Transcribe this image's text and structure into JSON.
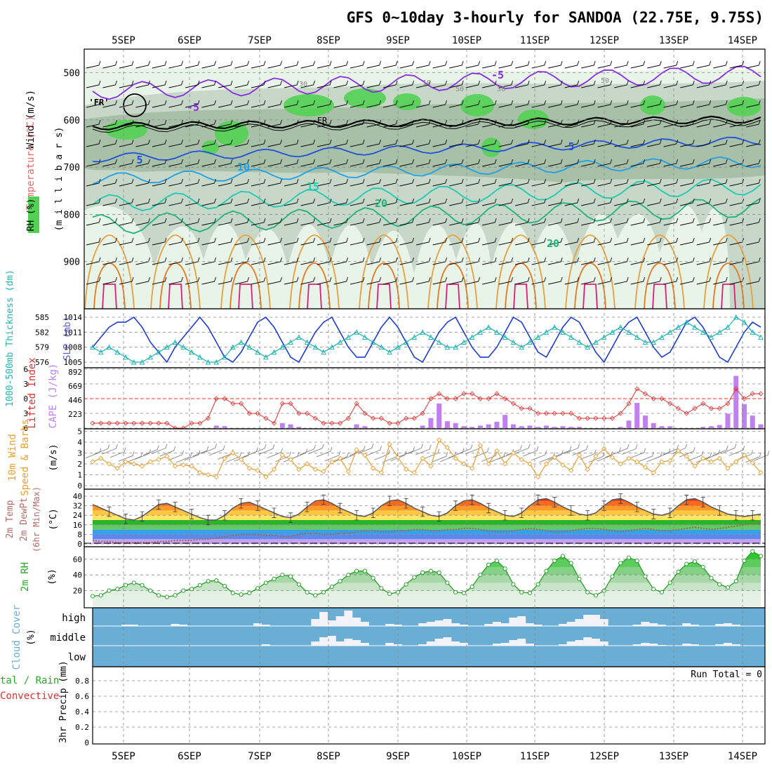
{
  "title": "GFS 0~10day 3-hourly for SANDOA (22.75E, 9.75S)",
  "date_labels": [
    "5SEP",
    "6SEP",
    "7SEP",
    "8SEP",
    "9SEP",
    "10SEP",
    "11SEP",
    "12SEP",
    "13SEP",
    "14SEP"
  ],
  "panels": {
    "upper_air": {
      "ylabel_units": "(m i l l i b a r s)",
      "ylabel_wind": "Wind (m/s)",
      "ylabel_temp": "Temperature (°C)",
      "ylabel_rh": "RH (%)",
      "y_ticks": [
        500,
        600,
        700,
        800,
        900
      ],
      "ylim": [
        1000,
        450
      ],
      "freezing_label": "FR",
      "freezing_label_top": "'FR'",
      "isotherm_labels": [
        "-5",
        "5",
        "10",
        "15",
        "20",
        "20"
      ],
      "rh_labels": [
        "30",
        "10",
        "50",
        "30",
        "50"
      ],
      "colors": {
        "rh70": "#c8d8c8",
        "rh80": "#a8c0a8",
        "rh90": "#52d152",
        "rh50": "#e8f4e8",
        "minus5": "#8a2be2",
        "iso5": "#1e50dc",
        "iso10": "#1ea0e6",
        "iso15": "#1ec8b4",
        "iso20": "#1eb478",
        "warm": "#e6a040",
        "hot": "#e67820",
        "veryhot": "#dc1e78"
      }
    },
    "thickness_slp": {
      "ylabel_thickness": "1000-500mb Thickness (dm)",
      "ylabel_slp": "SLP (mb)",
      "thickness_ticks": [
        "585",
        "582",
        "579",
        "576"
      ],
      "slp_ticks": [
        "1014",
        "1011",
        "1008",
        "1005"
      ],
      "colors": {
        "slp": "#1e3cd2",
        "thickness": "#20b4b4"
      }
    },
    "cape_li": {
      "ylabel_li": "Lifted Index",
      "ylabel_cape": "CAPE (J/kg)",
      "li_ticks": [
        "-6",
        "-3",
        "0",
        "3",
        "6"
      ],
      "cape_ticks": [
        "892",
        "669",
        "446",
        "223"
      ],
      "colors": {
        "li": "#e03030",
        "cape": "#c080f0"
      }
    },
    "wind10m": {
      "ylabel_a": "10m Wind",
      "ylabel_b": "Speed & Barbs",
      "ylabel_units": "(m/s)",
      "y_ticks": [
        "5",
        "4",
        "3",
        "2",
        "1",
        "0"
      ],
      "colors": {
        "speed": "#e8a030"
      }
    },
    "temp2m": {
      "ylabel_a": "2m Temp",
      "ylabel_b": "2m DewPt",
      "ylabel_c": "(6hr Min/Max)",
      "ylabel_units": "(°C)",
      "y_ticks": [
        "40",
        "32",
        "24",
        "16",
        "8",
        "0"
      ]
    },
    "rh2m": {
      "ylabel": "2m RH",
      "ylabel_units": "(%)",
      "y_ticks": [
        "60",
        "40",
        "20"
      ],
      "colors": {
        "line": "#1a9a1a",
        "fill": "#52d152"
      }
    },
    "cloud": {
      "ylabel": "Cloud Cover",
      "ylabel_units": "(%)",
      "levels": [
        "high",
        "middle",
        "low"
      ],
      "colors": {
        "bg": "#6aaed6",
        "cloud": "#f2f2f8"
      }
    },
    "precip": {
      "ylabel_a": "tal / Rain",
      "ylabel_b": "Convective",
      "ylabel_c": "3hr Precip (mm)",
      "y_ticks": [
        "0.8",
        "0.6",
        "0.4",
        "0.2",
        "0"
      ],
      "run_total": "Run Total = 0"
    }
  },
  "chart_data": [
    {
      "type": "line",
      "panel": "thickness_slp",
      "x_unit": "3-hourly steps from 4SEP 12Z",
      "series": [
        {
          "name": "SLP (mb)",
          "values": [
            1008,
            1010,
            1012,
            1013,
            1013,
            1014,
            1012,
            1009,
            1007,
            1005,
            1008,
            1010,
            1012,
            1014,
            1012,
            1009,
            1006,
            1005,
            1007,
            1010,
            1013,
            1014,
            1012,
            1009,
            1006,
            1005,
            1008,
            1011,
            1013,
            1014,
            1011,
            1008,
            1006,
            1006,
            1009,
            1012,
            1014,
            1012,
            1009,
            1006,
            1005,
            1008,
            1011,
            1013,
            1014,
            1011,
            1008,
            1006,
            1006,
            1008,
            1011,
            1014,
            1013,
            1010,
            1007,
            1006,
            1009,
            1012,
            1014,
            1013,
            1010,
            1007,
            1005,
            1008,
            1011,
            1013,
            1014,
            1011,
            1008,
            1006,
            1007,
            1010,
            1013,
            1014,
            1012,
            1009,
            1006,
            1005,
            1008,
            1011,
            1013,
            1012
          ]
        },
        {
          "name": "1000-500mb Thickness (dm)",
          "values": [
            579,
            578,
            579,
            578,
            577,
            576,
            576,
            577,
            578,
            579,
            580,
            579,
            578,
            577,
            576,
            576,
            577,
            579,
            580,
            579,
            578,
            577,
            578,
            579,
            580,
            581,
            580,
            579,
            578,
            579,
            580,
            581,
            582,
            581,
            580,
            579,
            578,
            579,
            580,
            581,
            582,
            581,
            580,
            579,
            579,
            580,
            581,
            582,
            583,
            582,
            581,
            580,
            579,
            580,
            581,
            582,
            583,
            582,
            581,
            580,
            579,
            580,
            581,
            582,
            583,
            582,
            581,
            580,
            580,
            581,
            582,
            583,
            584,
            583,
            582,
            581,
            582,
            583,
            585,
            584,
            582,
            581
          ]
        }
      ]
    },
    {
      "type": "bar",
      "panel": "cape_li",
      "x_unit": "3-hourly steps from 4SEP 12Z",
      "series": [
        {
          "name": "CAPE (J/kg)",
          "values": [
            0,
            0,
            0,
            0,
            0,
            0,
            0,
            0,
            0,
            0,
            0,
            0,
            0,
            0,
            0,
            40,
            30,
            0,
            0,
            0,
            0,
            0,
            0,
            80,
            60,
            20,
            0,
            0,
            0,
            0,
            0,
            0,
            60,
            30,
            0,
            0,
            0,
            0,
            0,
            0,
            40,
            160,
            390,
            110,
            80,
            30,
            20,
            40,
            60,
            100,
            210,
            60,
            30,
            40,
            20,
            40,
            20,
            30,
            20,
            20,
            0,
            0,
            0,
            0,
            20,
            120,
            400,
            200,
            80,
            30,
            30,
            0,
            0,
            0,
            20,
            30,
            50,
            230,
            830,
            380,
            200,
            60
          ]
        },
        {
          "name": "Lifted Index",
          "values": [
            5,
            5,
            5,
            5,
            5,
            5,
            5,
            5,
            5,
            5,
            6,
            6,
            5,
            5,
            4,
            0,
            0,
            1,
            1,
            3,
            3,
            4,
            5,
            1,
            1,
            3,
            3,
            4,
            5,
            5,
            5,
            4,
            1,
            3,
            4,
            4,
            5,
            5,
            4,
            4,
            3,
            0,
            -1,
            0,
            0,
            -1,
            -1,
            0,
            0,
            -1,
            0,
            1,
            2,
            2,
            3,
            3,
            3,
            3,
            3,
            4,
            4,
            4,
            4,
            4,
            3,
            1,
            -2,
            -1,
            0,
            0,
            1,
            2,
            3,
            2,
            1,
            2,
            2,
            1,
            -2,
            0,
            -1,
            -1
          ]
        }
      ]
    },
    {
      "type": "line",
      "panel": "wind10m",
      "x_unit": "3-hourly steps from 4SEP 12Z",
      "series": [
        {
          "name": "10m Wind Speed (m/s)",
          "values": [
            2.2,
            2.5,
            2.0,
            1.6,
            2.2,
            2.0,
            1.8,
            2.2,
            2.4,
            2.7,
            1.8,
            1.9,
            1.8,
            1.2,
            1.0,
            0.8,
            2.5,
            3.0,
            2.4,
            1.6,
            1.4,
            0.8,
            1.5,
            2.8,
            2.4,
            1.5,
            2.0,
            1.5,
            1.3,
            2.2,
            2.5,
            1.3,
            3.3,
            2.8,
            1.6,
            1.2,
            3.8,
            2.6,
            1.5,
            1.2,
            2.5,
            1.8,
            4.2,
            3.5,
            2.5,
            2.0,
            1.6,
            3.7,
            2.0,
            3.2,
            2.0,
            3.0,
            2.4,
            2.0,
            0.8,
            2.0,
            2.6,
            1.9,
            1.4,
            2.8,
            1.5,
            2.7,
            3.4,
            2.6,
            2.0,
            2.5,
            2.2,
            1.7,
            1.2,
            2.2,
            2.3,
            3.2,
            2.7,
            1.8,
            2.5,
            2.2,
            2.5,
            1.6,
            2.2,
            2.8,
            2.1,
            1.2
          ]
        }
      ]
    },
    {
      "type": "area",
      "panel": "temp2m",
      "x_unit": "3-hourly steps from 4SEP 12Z",
      "series": [
        {
          "name": "2m Temp (°C)",
          "values": [
            33,
            30,
            27,
            24,
            21,
            20,
            23,
            28,
            33,
            34,
            31,
            28,
            25,
            22,
            20,
            20,
            24,
            30,
            34,
            35,
            32,
            29,
            26,
            23,
            22,
            25,
            31,
            36,
            37,
            34,
            30,
            27,
            24,
            23,
            26,
            32,
            36,
            37,
            34,
            30,
            27,
            24,
            23,
            26,
            32,
            36,
            37,
            34,
            30,
            27,
            24,
            23,
            26,
            32,
            37,
            38,
            35,
            31,
            28,
            25,
            24,
            26,
            32,
            37,
            38,
            35,
            31,
            28,
            25,
            24,
            26,
            32,
            37,
            38,
            35,
            31,
            28,
            25,
            24,
            23,
            24,
            25
          ]
        },
        {
          "name": "2m DewPt (°C)",
          "values": [
            3,
            2,
            2,
            1,
            1,
            1,
            1,
            1,
            2,
            2,
            3,
            3,
            3,
            4,
            4,
            5,
            6,
            7,
            8,
            8,
            8,
            7,
            7,
            6,
            6,
            8,
            9,
            9,
            8,
            8,
            9,
            9,
            10,
            11,
            11,
            10,
            10,
            11,
            11,
            12,
            12,
            11,
            11,
            12,
            12,
            13,
            13,
            12,
            11,
            10,
            10,
            11,
            12,
            13,
            12,
            11,
            10,
            10,
            11,
            12,
            13,
            13,
            12,
            11,
            10,
            11,
            12,
            13,
            12,
            11,
            11,
            12,
            13,
            14,
            13,
            12,
            13,
            14,
            15,
            16,
            17,
            17
          ]
        }
      ]
    },
    {
      "type": "area",
      "panel": "rh2m",
      "x_unit": "3-hourly steps from 4SEP 12Z",
      "series": [
        {
          "name": "2m RH (%)",
          "values": [
            13,
            14,
            20,
            22,
            27,
            30,
            27,
            20,
            14,
            12,
            14,
            20,
            22,
            27,
            32,
            33,
            26,
            17,
            15,
            17,
            23,
            30,
            35,
            40,
            38,
            28,
            18,
            14,
            18,
            25,
            32,
            40,
            45,
            45,
            36,
            23,
            16,
            18,
            28,
            37,
            43,
            45,
            43,
            30,
            18,
            17,
            25,
            40,
            53,
            58,
            48,
            28,
            18,
            17,
            28,
            45,
            58,
            64,
            55,
            35,
            18,
            14,
            20,
            38,
            55,
            62,
            58,
            38,
            22,
            18,
            30,
            44,
            54,
            57,
            50,
            36,
            28,
            24,
            32,
            58,
            70,
            64
          ]
        }
      ]
    },
    {
      "type": "bar",
      "panel": "precip",
      "x_unit": "3-hourly steps from 4SEP 12Z",
      "series": [
        {
          "name": "3hr Precip (mm)",
          "values": [
            0,
            0,
            0,
            0,
            0,
            0,
            0,
            0,
            0,
            0,
            0,
            0,
            0,
            0,
            0,
            0,
            0,
            0,
            0,
            0,
            0,
            0,
            0,
            0,
            0,
            0,
            0,
            0,
            0,
            0,
            0,
            0,
            0,
            0,
            0,
            0,
            0,
            0,
            0,
            0,
            0,
            0,
            0,
            0,
            0,
            0,
            0,
            0,
            0,
            0,
            0,
            0,
            0,
            0,
            0,
            0,
            0,
            0,
            0,
            0,
            0,
            0,
            0,
            0,
            0,
            0,
            0,
            0,
            0,
            0,
            0,
            0,
            0,
            0,
            0,
            0,
            0,
            0,
            0,
            0,
            0,
            0
          ]
        }
      ],
      "ylim": [
        0,
        0.9
      ]
    }
  ]
}
